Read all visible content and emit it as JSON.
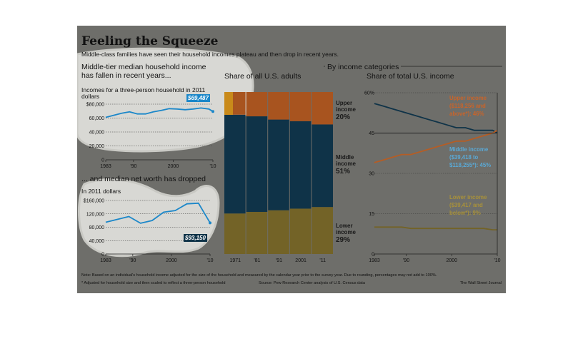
{
  "title": "Feeling the Squeeze",
  "subtitle": "Middle-class families have seen their household incomes plateau and then drop in recent years.",
  "colors": {
    "upper": "#a8541f",
    "middle": "#0f3348",
    "lower": "#736327",
    "line_blue": "#1b87c9",
    "highlight": "#e0e0e0",
    "panel_bg": "#6e6e6a"
  },
  "income_panel": {
    "title_line1": "Middle-tier median household income",
    "title_line2": "has fallen in recent years...",
    "note_line1": "Incomes for a three-person household in 2011",
    "note_line2": "dollars",
    "callout": "$69,487"
  },
  "networth_panel": {
    "title": "... and median net worth has dropped",
    "note": "In 2011 dollars",
    "callout": "$93,150"
  },
  "categories_header": "By income categories",
  "adults_panel": {
    "title": "Share of all U.S. adults",
    "upper_label_1": "Upper",
    "upper_label_2": "income",
    "upper_pct": "20%",
    "middle_label_1": "Middle",
    "middle_label_2": "income",
    "middle_pct": "51%",
    "lower_label_1": "Lower",
    "lower_label_2": "income",
    "lower_pct": "29%"
  },
  "share_panel": {
    "title": "Share of total U.S. income",
    "upper_label": "Upper income ($118,256 and above*): 46%",
    "middle_label": "Middle income ($39,418 to $118,255*): 45%",
    "lower_label": "Lower income ($39,417 and below*): 9%"
  },
  "footer": {
    "note": "Note: Based on an individual's household income adjusted for the size of the household and measured by the calendar year prior to the survey year. Due to rounding, percentages may not add to 100%.",
    "footnote": "* Adjusted for household size and then scaled to reflect a three-person household",
    "source": "Source: Pew Research Center analysis of U.S. Census data",
    "credit": "The Wall Street Journal"
  },
  "chart_data": [
    {
      "type": "line",
      "title": "Middle-tier median household income has fallen in recent years...",
      "ylabel": "Incomes for a three-person household in 2011 dollars",
      "x": [
        1983,
        1985,
        1987,
        1989,
        1991,
        1993,
        1995,
        1997,
        1999,
        2001,
        2003,
        2005,
        2007,
        2009,
        2010
      ],
      "values": [
        61000,
        64000,
        67000,
        69000,
        66000,
        66000,
        69000,
        71000,
        73500,
        73000,
        72000,
        73000,
        74500,
        73000,
        69487
      ],
      "ylim": [
        0,
        80000
      ],
      "yticks": [
        "$80,000",
        "60,000",
        "40,000",
        "20,000",
        "0"
      ],
      "xticks": [
        "1983",
        "'90",
        "2000",
        "'10"
      ]
    },
    {
      "type": "line",
      "title": "... and median net worth has dropped",
      "ylabel": "In 2011 dollars",
      "x": [
        1983,
        1989,
        1992,
        1995,
        1998,
        2001,
        2004,
        2007,
        2010
      ],
      "values": [
        95000,
        112000,
        92000,
        100000,
        125000,
        130000,
        150000,
        152000,
        93150
      ],
      "ylim": [
        0,
        160000
      ],
      "yticks": [
        "$160,000",
        "120,000",
        "80,000",
        "40,000",
        "0"
      ],
      "xticks": [
        "1983",
        "'90",
        "2000",
        "'10"
      ]
    },
    {
      "type": "bar",
      "stacked": true,
      "title": "Share of all U.S. adults",
      "categories": [
        "1971",
        "1981",
        "1991",
        "2001",
        "2011"
      ],
      "xticks": [
        "1971",
        "'81",
        "'91",
        "2001",
        "'11"
      ],
      "series": [
        {
          "name": "Lower income",
          "values": [
            25,
            26,
            27,
            28,
            29
          ]
        },
        {
          "name": "Middle income",
          "values": [
            61,
            59,
            56,
            54,
            51
          ]
        },
        {
          "name": "Upper income",
          "values": [
            14,
            15,
            17,
            18,
            20
          ]
        }
      ],
      "ylim": [
        0,
        100
      ]
    },
    {
      "type": "line",
      "title": "Share of total U.S. income",
      "x": [
        1983,
        1985,
        1987,
        1989,
        1991,
        1993,
        1995,
        1997,
        1999,
        2001,
        2003,
        2005,
        2007,
        2009,
        2010
      ],
      "ylim": [
        0,
        60
      ],
      "yticks": [
        "60%",
        "45",
        "30",
        "15",
        "0"
      ],
      "xticks": [
        "1983",
        "'90",
        "2000",
        "'10"
      ],
      "series": [
        {
          "name": "Middle income",
          "values": [
            56,
            55,
            54,
            53,
            52,
            51,
            50,
            49,
            48,
            47,
            47,
            46,
            46,
            46,
            45
          ]
        },
        {
          "name": "Upper income",
          "values": [
            34,
            35,
            36,
            37,
            37,
            38,
            39,
            40,
            41,
            42,
            42,
            43,
            44,
            45,
            46
          ]
        },
        {
          "name": "Lower income",
          "values": [
            10,
            10,
            10,
            10,
            9.5,
            9.5,
            9.5,
            9.5,
            9.5,
            9.5,
            9.5,
            9.5,
            9.5,
            9,
            9
          ]
        }
      ]
    }
  ]
}
